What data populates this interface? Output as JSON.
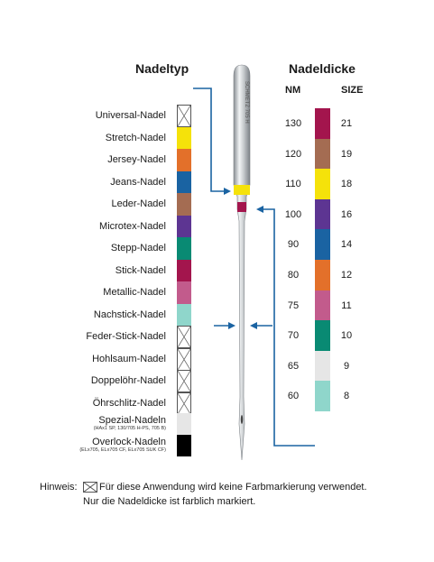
{
  "headers": {
    "needle_type": "Nadeltyp",
    "needle_thickness": "Nadeldicke",
    "nm": "NM",
    "size": "SIZE"
  },
  "needle_imprint": "SCHMETZ 705 H",
  "needle_types": [
    {
      "label": "Universal-Nadel",
      "color": "none"
    },
    {
      "label": "Stretch-Nadel",
      "color": "#f5e20a"
    },
    {
      "label": "Jersey-Nadel",
      "color": "#e3702a"
    },
    {
      "label": "Jeans-Nadel",
      "color": "#1a63a2"
    },
    {
      "label": "Leder-Nadel",
      "color": "#a46c52"
    },
    {
      "label": "Microtex-Nadel",
      "color": "#5d3592"
    },
    {
      "label": "Stepp-Nadel",
      "color": "#098a73"
    },
    {
      "label": "Stick-Nadel",
      "color": "#a3154d"
    },
    {
      "label": "Metallic-Nadel",
      "color": "#c25b8c"
    },
    {
      "label": "Nachstick-Nadel",
      "color": "#8fd6cb"
    },
    {
      "label": "Feder-Stick-Nadel",
      "color": "none"
    },
    {
      "label": "Hohlsaum-Nadel",
      "color": "none"
    },
    {
      "label": "Doppelöhr-Nadel",
      "color": "none"
    },
    {
      "label": "Öhrschlitz-Nadel",
      "color": "none"
    }
  ],
  "special_types": [
    {
      "label": "Spezial-Nadeln",
      "sub": "(HAx1 SP, 130/705 H-PS, 705 B)",
      "color": "#e6e6e6"
    },
    {
      "label": "Overlock-Nadeln",
      "sub": "(ELx705, ELx705 CF, ELx705 SUK CF)",
      "color": "#000000"
    }
  ],
  "sizes": [
    {
      "nm": "130",
      "size": "21",
      "color": "#a3154d"
    },
    {
      "nm": "120",
      "size": "19",
      "color": "#a46c52"
    },
    {
      "nm": "110",
      "size": "18",
      "color": "#f5e20a"
    },
    {
      "nm": "100",
      "size": "16",
      "color": "#5d3592"
    },
    {
      "nm": "90",
      "size": "14",
      "color": "#1a63a2"
    },
    {
      "nm": "80",
      "size": "12",
      "color": "#e3702a"
    },
    {
      "nm": "75",
      "size": "11",
      "color": "#c25b8c"
    },
    {
      "nm": "70",
      "size": "10",
      "color": "#098a73"
    },
    {
      "nm": "65",
      "size": "9",
      "color": "#e6e6e6"
    },
    {
      "nm": "60",
      "size": "8",
      "color": "#8fd6cb"
    }
  ],
  "hint": {
    "prefix": "Hinweis:",
    "line1": "Für diese Anwendung wird keine Farbmarkierung verwendet.",
    "line2": "Nur die Nadeldicke ist farblich markiert."
  },
  "colors": {
    "arrow": "#1a63a2",
    "needle_type_band": "#f5e20a",
    "needle_size_band": "#a3154d"
  }
}
